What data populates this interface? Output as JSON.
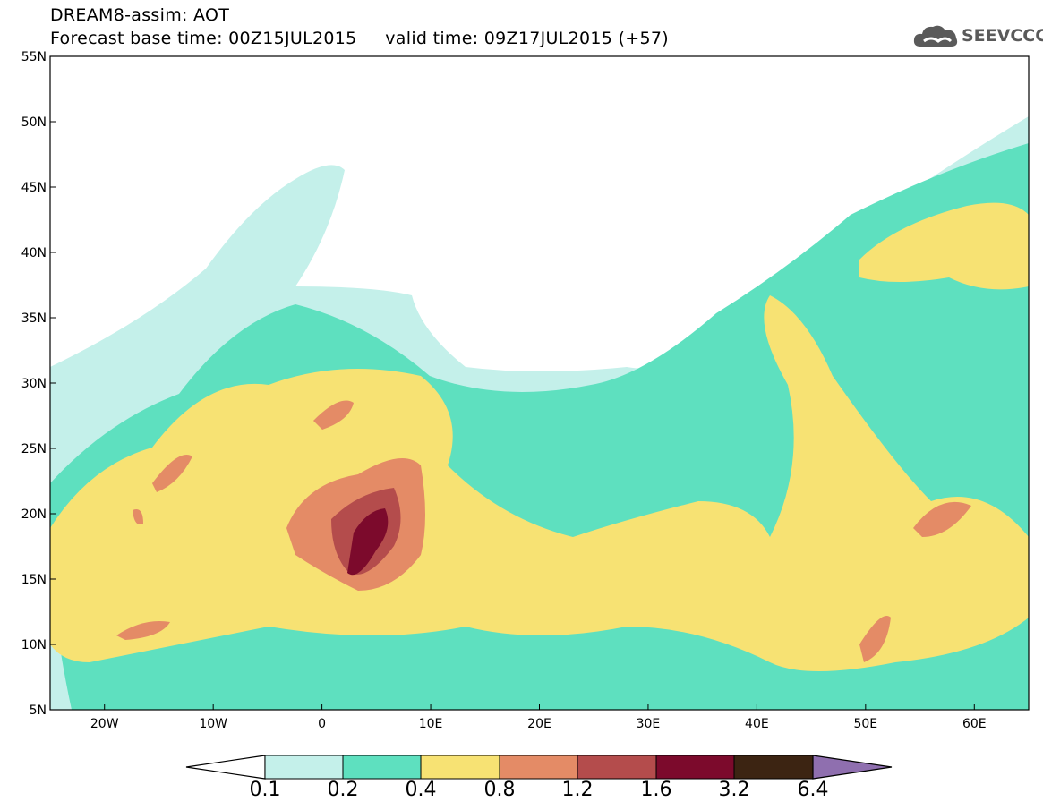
{
  "header": {
    "line1": "DREAM8-assim: AOT",
    "line2": "Forecast base time: 00Z15JUL2015     valid time: 09Z17JUL2015 (+57)"
  },
  "logo": {
    "text": "SEEVCCC",
    "icon": "cloud-icon"
  },
  "map": {
    "lon_range": [
      -25,
      65
    ],
    "lat_range": [
      5,
      55
    ],
    "lat_labels": [
      "55N",
      "50N",
      "45N",
      "40N",
      "35N",
      "30N",
      "25N",
      "20N",
      "15N",
      "10N",
      "5N"
    ],
    "lon_labels": [
      "20W",
      "10W",
      "0",
      "10E",
      "20E",
      "30E",
      "40E",
      "50E",
      "60E"
    ]
  },
  "colorbar": {
    "labels": [
      "0.1",
      "0.2",
      "0.4",
      "0.8",
      "1.2",
      "1.6",
      "3.2",
      "6.4"
    ],
    "colors": [
      "#ffffff",
      "#c4f0ea",
      "#5ee0bf",
      "#f7e273",
      "#e48b66",
      "#b44c4c",
      "#7c0a2c",
      "#3c2412",
      "#8f6faf"
    ]
  }
}
